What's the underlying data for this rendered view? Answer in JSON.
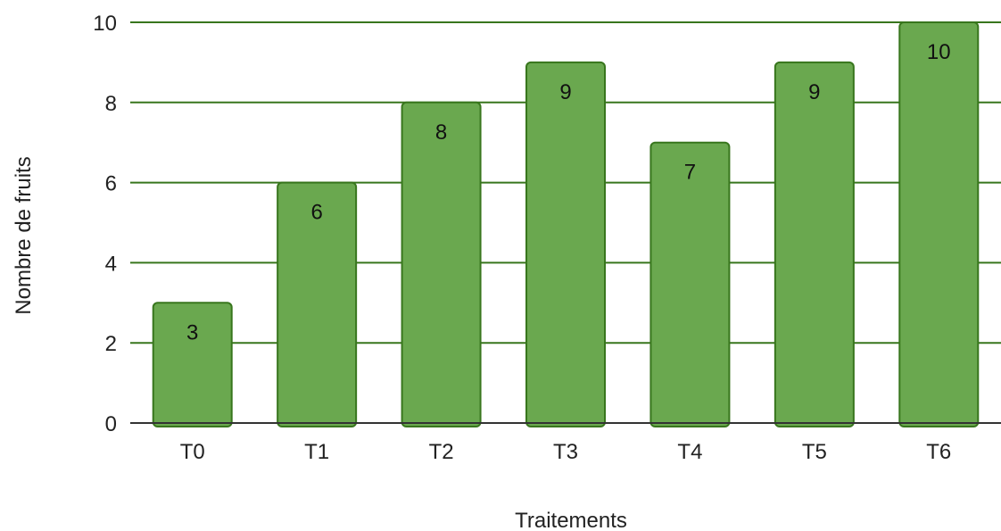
{
  "chart_data": {
    "type": "bar",
    "title": "",
    "xlabel": "Traitements",
    "ylabel": "Nombre de fruits",
    "categories": [
      "T0",
      "T1",
      "T2",
      "T3",
      "T4",
      "T5",
      "T6"
    ],
    "values": [
      3,
      6,
      8,
      9,
      7,
      9,
      10
    ],
    "ylim": [
      0,
      10
    ],
    "yticks": [
      "0",
      "2",
      "4",
      "6",
      "8",
      "10"
    ],
    "data_labels": [
      "3",
      "6",
      "8",
      "9",
      "7",
      "9",
      "10"
    ],
    "grid": true,
    "legend": "none",
    "colors": {
      "bar_fill": "#6aa84f",
      "bar_stroke": "#38761d",
      "gridline": "#38761d",
      "baseline": "#333333"
    }
  }
}
